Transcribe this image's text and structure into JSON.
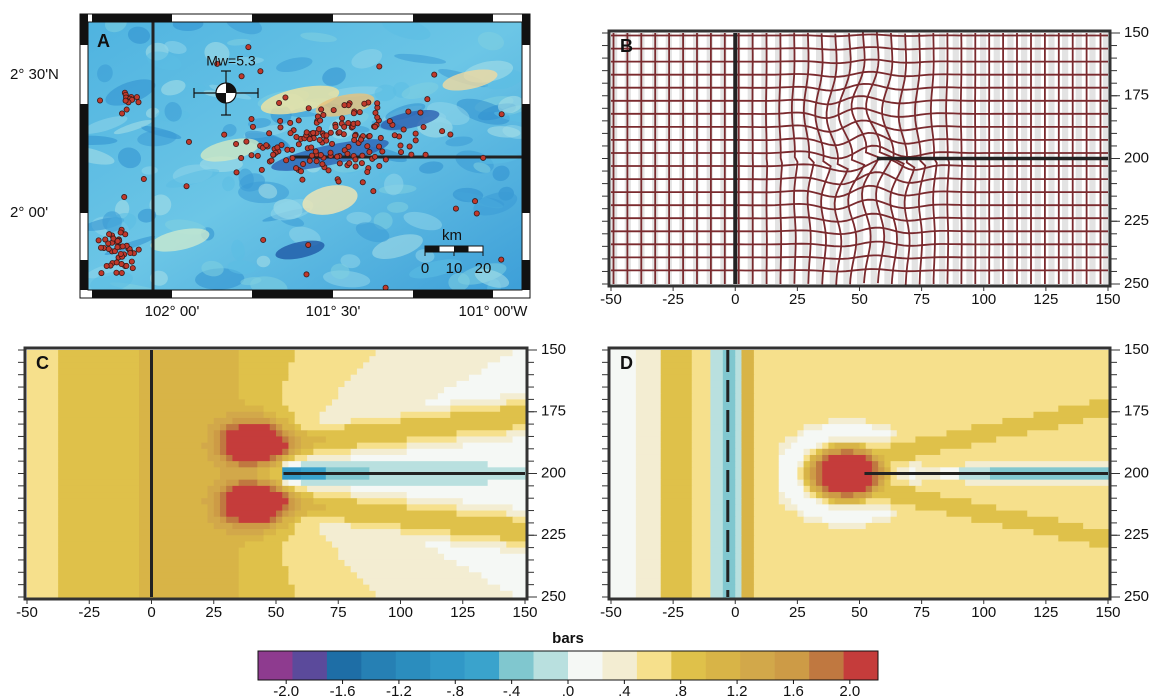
{
  "panel_a": {
    "label": "A",
    "magnitude": "Mw=5.3",
    "x_tick_labels": [
      "102° 00'",
      "101° 30'",
      "101° 00'W"
    ],
    "y_tick_labels": [
      "2° 30'N",
      "2° 00'"
    ],
    "scale_bar": {
      "unit": "km",
      "ticks": [
        0,
        10,
        20
      ]
    }
  },
  "panels": [
    {
      "label": "B",
      "xlim": [
        -50,
        150
      ],
      "ylim": [
        150,
        250
      ],
      "y_inverted": true,
      "xticks": [
        -50,
        -25,
        0,
        25,
        50,
        75,
        100,
        125,
        150
      ],
      "yticks": [
        150,
        175,
        200,
        225,
        250
      ]
    },
    {
      "label": "C",
      "xlim": [
        -50,
        150
      ],
      "ylim": [
        150,
        250
      ],
      "y_inverted": true,
      "xticks": [
        -50,
        -25,
        0,
        25,
        50,
        75,
        100,
        125,
        150
      ],
      "yticks": [
        150,
        175,
        200,
        225,
        250
      ]
    },
    {
      "label": "D",
      "xlim": [
        -50,
        150
      ],
      "ylim": [
        150,
        250
      ],
      "y_inverted": true,
      "xticks": [
        -50,
        -25,
        0,
        25,
        50,
        75,
        100,
        125,
        150
      ],
      "yticks": [
        150,
        175,
        200,
        225,
        250
      ]
    }
  ],
  "colorbar": {
    "title": "bars",
    "clim": [
      -2.2,
      2.2
    ],
    "colors": [
      "#8e3b8f",
      "#5b4a9b",
      "#1e6ea6",
      "#2680b4",
      "#2b8dbe",
      "#3198c7",
      "#3aa3cc",
      "#80c7cf",
      "#b9e0df",
      "#f5f8f5",
      "#f3edd2",
      "#f6e08c",
      "#dfc14a",
      "#d8b447",
      "#d2a84a",
      "#cd9b46",
      "#c07840",
      "#c53c3b"
    ],
    "ticks": [
      {
        "value": -2,
        "label": "-2.0"
      },
      -1.6,
      -1.2,
      {
        "value": -0.8,
        "label": "-.8"
      },
      {
        "value": -0.4,
        "label": "-.4"
      },
      {
        "value": 0,
        "label": ".0"
      },
      {
        "value": 0.4,
        "label": ".4"
      },
      {
        "value": 0.8,
        "label": ".8"
      },
      1.2,
      1.6,
      {
        "value": 2,
        "label": "2.0"
      }
    ]
  }
}
